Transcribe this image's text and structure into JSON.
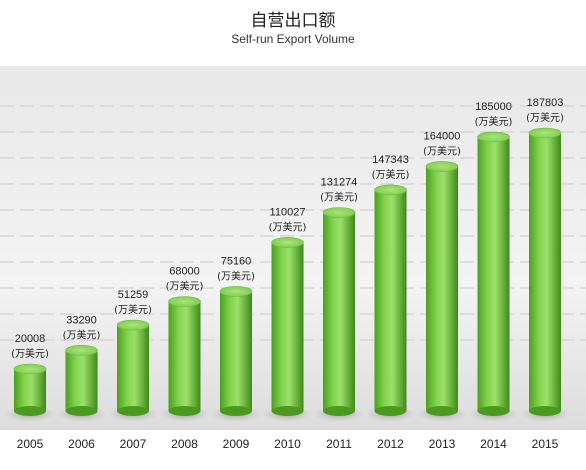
{
  "chart_data": {
    "type": "bar",
    "title": "自营出口额",
    "subtitle": "Self-run Export Volume",
    "unit": "(万美元)",
    "categories": [
      "2005",
      "2006",
      "2007",
      "2008",
      "2009",
      "2010",
      "2011",
      "2012",
      "2013",
      "2014",
      "2015"
    ],
    "values": [
      20008,
      33290,
      51259,
      68000,
      75160,
      110027,
      131274,
      147343,
      164000,
      185000,
      187803
    ],
    "grid": "dashed horizontal",
    "colors": {
      "bar": "#6fc43a",
      "bar_top": "#8fd95a",
      "bar_dark": "#3f8f1c",
      "background": "#eeeeee"
    }
  }
}
